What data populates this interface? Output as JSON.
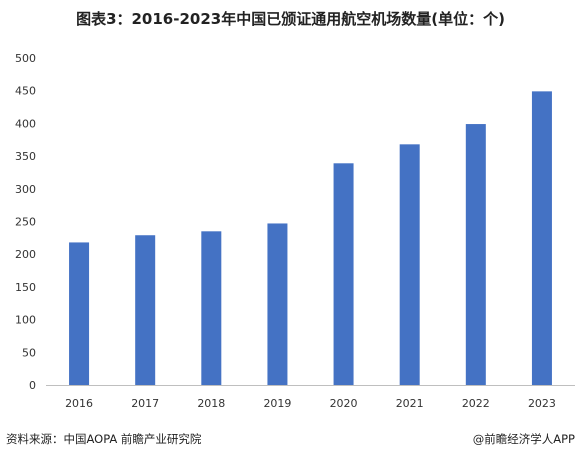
{
  "title": "图表3：2016-2023年中国已颁证通用航空机场数量(单位：个)",
  "footer": {
    "source": "资料来源：中国AOPA 前瞻产业研究院",
    "brand": "@前瞻经济学人APP"
  },
  "colors": {
    "bar": "#4472c4",
    "axis": "#bfbfbf",
    "text": "#333333"
  },
  "chart_data": {
    "type": "bar",
    "categories": [
      "2016",
      "2017",
      "2018",
      "2019",
      "2020",
      "2021",
      "2022",
      "2023"
    ],
    "values": [
      218,
      229,
      235,
      247,
      339,
      368,
      399,
      449
    ],
    "ylim": [
      0,
      500
    ],
    "yticks": [
      0,
      50,
      100,
      150,
      200,
      250,
      300,
      350,
      400,
      450,
      500
    ],
    "grid": false,
    "legend": "none"
  }
}
